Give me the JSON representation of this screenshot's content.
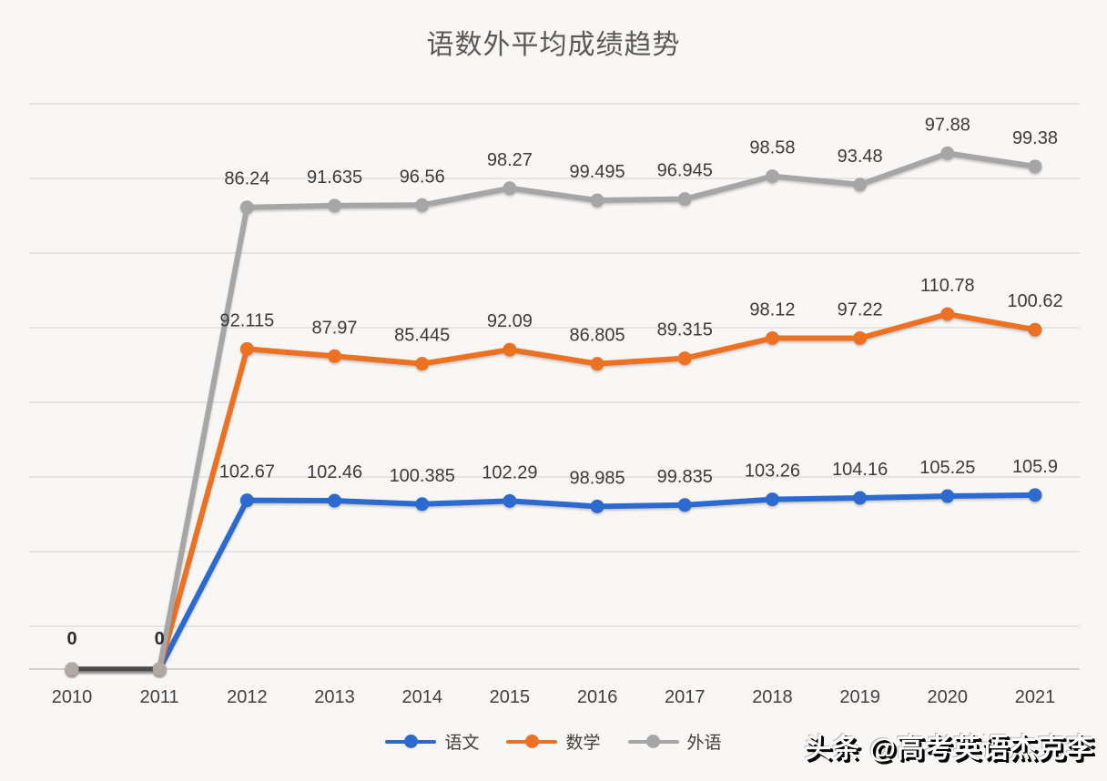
{
  "title": "语数外平均成绩趋势",
  "watermark": "头条 @高考英语杰克李",
  "chart_data": {
    "type": "line",
    "stacked": true,
    "title": "语数外平均成绩趋势",
    "categories": [
      "2010",
      "2011",
      "2012",
      "2013",
      "2014",
      "2015",
      "2016",
      "2017",
      "2018",
      "2019",
      "2020",
      "2021"
    ],
    "series": [
      {
        "id": "chinese",
        "name": "语文",
        "color": "#2d6ad0",
        "values": [
          0,
          0,
          102.67,
          102.46,
          100.385,
          102.29,
          98.985,
          99.835,
          103.26,
          104.16,
          105.25,
          105.9
        ]
      },
      {
        "id": "math",
        "name": "数学",
        "color": "#ed7123",
        "values": [
          0,
          0,
          92.115,
          87.97,
          85.445,
          92.09,
          86.805,
          89.315,
          98.12,
          97.22,
          110.78,
          100.62
        ]
      },
      {
        "id": "foreign-language",
        "name": "外语",
        "color": "#a6a6a6",
        "values": [
          0,
          0,
          86.24,
          91.635,
          96.56,
          98.27,
          99.495,
          96.945,
          98.58,
          93.48,
          97.88,
          99.38
        ]
      }
    ],
    "data_labels": true,
    "zero_label": "0",
    "xlabel": "",
    "ylabel": "",
    "ylim": [
      0,
      360
    ],
    "grid": true,
    "legend_position": "bottom"
  },
  "colors": {
    "background": "#f8f7f5",
    "gridline": "#dcdad8",
    "axis": "#c9c7c5",
    "data_label": "#3b3b3b",
    "axis_label": "#404040",
    "title": "#595959",
    "overlap_segment": "#4a4a4a",
    "overlap_dot": "#b2a8a5"
  }
}
